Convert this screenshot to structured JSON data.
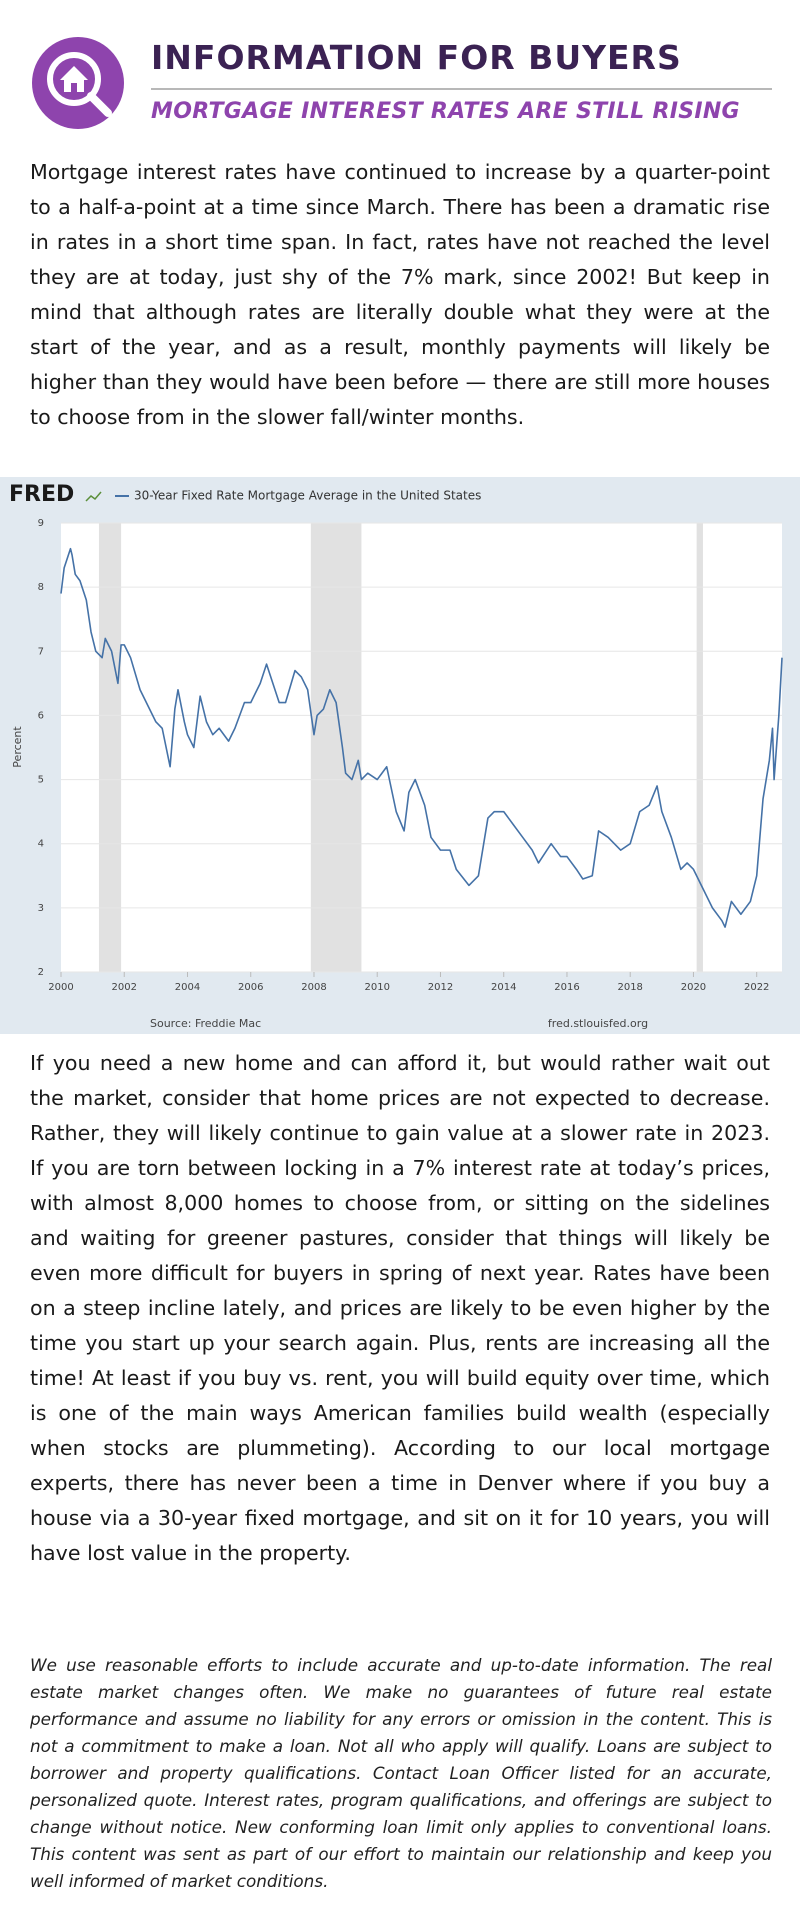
{
  "header": {
    "title": "INFORMATION FOR BUYERS",
    "subtitle": "MORTGAGE INTEREST RATES ARE STILL RISING"
  },
  "paragraphs": [
    "Mortgage interest rates have continued to increase by a quarter-point to a half-a-point at a time since March. There has been a dramatic rise in rates in a short time span. In fact, rates have not reached the level they are at today, just shy of the 7% mark, since 2002! But keep in mind that although rates are literally double what they were at the start of the year, and as a result, monthly payments will likely be higher than they would have been before — there are still more houses to choose from in the slower fall/winter months.",
    "If you need a new home and can afford it, but would rather wait out the market, consider that home prices are not expected to decrease. Rather, they will likely continue to gain value at a slower rate in 2023. If you are torn between locking in a 7% interest rate at today’s prices, with almost 8,000 homes to choose from, or sitting on the sidelines and waiting for greener pastures, consider that things will likely be even more difficult for buyers in spring of next year. Rates have been on a steep incline lately, and prices are likely to be even higher by the time you start up your search again. Plus, rents are increasing all the time! At least if you buy vs. rent, you will build equity over time, which is one of the main ways American families build wealth (especially when stocks are plummeting). According to our local mortgage experts, there has never been a time in Denver where if you buy a house via a 30-year fixed mortgage, and sit on it for 10 years, you will have lost value in the property."
  ],
  "disclaimer": "We use reasonable efforts to include accurate and up-to-date information. The real estate market changes often. We make no guarantees of future real estate performance  and assume no liability for any errors or omission in the content. This is not a commitment to make a loan. Not all who apply will qualify. Loans are subject to borrower and property qualifications. Contact Loan Officer listed for an accurate, personalized quote. Interest rates, program qualifications, and offerings are subject to change without notice. New conforming loan limit only applies to conventional loans. This content was sent as part of our effort to maintain our relationship and keep you well informed of market conditions.",
  "chart_data": {
    "type": "line",
    "logo": "FRED",
    "ylabel": "Percent",
    "source": "Source: Freddie Mac",
    "source_url": "fred.stlouisfed.org",
    "x": [
      2000.0,
      2000.1,
      2000.3,
      2000.35,
      2000.45,
      2000.6,
      2000.8,
      2000.95,
      2001.1,
      2001.3,
      2001.4,
      2001.6,
      2001.8,
      2001.9,
      2002.0,
      2002.2,
      2002.5,
      2002.8,
      2003.0,
      2003.2,
      2003.45,
      2003.6,
      2003.7,
      2003.9,
      2004.0,
      2004.2,
      2004.4,
      2004.6,
      2004.8,
      2005.0,
      2005.3,
      2005.5,
      2005.8,
      2006.0,
      2006.3,
      2006.5,
      2006.7,
      2006.9,
      2007.1,
      2007.4,
      2007.6,
      2007.8,
      2008.0,
      2008.1,
      2008.3,
      2008.5,
      2008.7,
      2008.9,
      2009.0,
      2009.2,
      2009.4,
      2009.5,
      2009.7,
      2010.0,
      2010.3,
      2010.6,
      2010.85,
      2011.0,
      2011.2,
      2011.5,
      2011.7,
      2012.0,
      2012.3,
      2012.5,
      2012.9,
      2013.2,
      2013.5,
      2013.7,
      2014.0,
      2014.3,
      2014.6,
      2014.9,
      2015.1,
      2015.5,
      2015.8,
      2016.0,
      2016.3,
      2016.5,
      2016.8,
      2017.0,
      2017.3,
      2017.7,
      2018.0,
      2018.3,
      2018.6,
      2018.85,
      2019.0,
      2019.3,
      2019.6,
      2019.8,
      2020.0,
      2020.3,
      2020.6,
      2020.9,
      2021.0,
      2021.2,
      2021.5,
      2021.8,
      2022.0,
      2022.2,
      2022.4,
      2022.5,
      2022.55,
      2022.7,
      2022.8
    ],
    "series": [
      {
        "name": "30-Year Fixed Rate Mortgage Average in the United States",
        "color": "#4572a7",
        "values": [
          7.9,
          8.3,
          8.6,
          8.5,
          8.2,
          8.1,
          7.8,
          7.3,
          7.0,
          6.9,
          7.2,
          7.0,
          6.5,
          7.1,
          7.1,
          6.9,
          6.4,
          6.1,
          5.9,
          5.8,
          5.2,
          6.1,
          6.4,
          5.9,
          5.7,
          5.5,
          6.3,
          5.9,
          5.7,
          5.8,
          5.6,
          5.8,
          6.2,
          6.2,
          6.5,
          6.8,
          6.5,
          6.2,
          6.2,
          6.7,
          6.6,
          6.4,
          5.7,
          6.0,
          6.1,
          6.4,
          6.2,
          5.5,
          5.1,
          5.0,
          5.3,
          5.0,
          5.1,
          5.0,
          5.2,
          4.5,
          4.2,
          4.8,
          5.0,
          4.6,
          4.1,
          3.9,
          3.9,
          3.6,
          3.35,
          3.5,
          4.4,
          4.5,
          4.5,
          4.3,
          4.1,
          3.9,
          3.7,
          4.0,
          3.8,
          3.8,
          3.6,
          3.45,
          3.5,
          4.2,
          4.1,
          3.9,
          4.0,
          4.5,
          4.6,
          4.9,
          4.5,
          4.1,
          3.6,
          3.7,
          3.6,
          3.3,
          3.0,
          2.8,
          2.7,
          3.1,
          2.9,
          3.1,
          3.5,
          4.7,
          5.3,
          5.8,
          5.0,
          6.0,
          6.9
        ]
      }
    ],
    "shaded_periods": [
      [
        2001.2,
        2001.9
      ],
      [
        2007.9,
        2009.5
      ],
      [
        2020.1,
        2020.3
      ]
    ],
    "xlim": [
      2000,
      2022.8
    ],
    "xticks": [
      2000,
      2002,
      2004,
      2006,
      2008,
      2010,
      2012,
      2014,
      2016,
      2018,
      2020,
      2022
    ],
    "ylim": [
      2,
      9
    ],
    "yticks": [
      2,
      3,
      4,
      5,
      6,
      7,
      8,
      9
    ],
    "grid": true
  }
}
